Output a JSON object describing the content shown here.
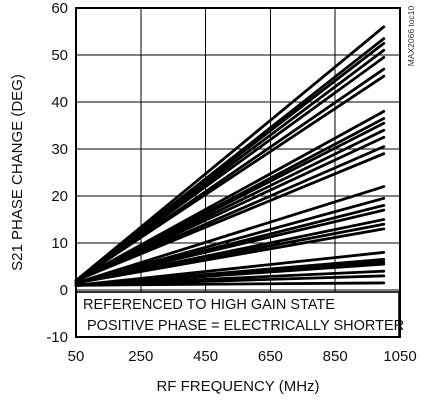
{
  "chart_data": {
    "type": "line",
    "xlabel": "RF FREQUENCY (MHz)",
    "ylabel": "S21 PHASE CHANGE (DEG)",
    "side_tag": "MAX2066 toc10",
    "xlim": [
      50,
      1050
    ],
    "ylim": [
      -10,
      60
    ],
    "x_ticks": [
      "50",
      "250",
      "450",
      "650",
      "850",
      "1050"
    ],
    "y_ticks": [
      "-10",
      "0",
      "10",
      "20",
      "30",
      "40",
      "50",
      "60"
    ],
    "grid": true,
    "annotations": [
      "REFERENCED TO HIGH GAIN STATE",
      "POSITIVE PHASE = ELECTRICALLY SHORTER"
    ],
    "x": [
      50,
      1000
    ],
    "series": [
      {
        "values": [
          2,
          56
        ]
      },
      {
        "values": [
          2,
          53.5
        ]
      },
      {
        "values": [
          2,
          52.5
        ]
      },
      {
        "values": [
          2,
          51
        ]
      },
      {
        "values": [
          2,
          49.5
        ]
      },
      {
        "values": [
          2,
          47
        ]
      },
      {
        "values": [
          2,
          45.5
        ]
      },
      {
        "values": [
          2,
          38
        ]
      },
      {
        "values": [
          2,
          36.5
        ]
      },
      {
        "values": [
          2,
          35.5
        ]
      },
      {
        "values": [
          2,
          34
        ]
      },
      {
        "values": [
          2,
          32.5
        ]
      },
      {
        "values": [
          2,
          30.5
        ]
      },
      {
        "values": [
          2,
          29
        ]
      },
      {
        "values": [
          1.5,
          22
        ]
      },
      {
        "values": [
          1.5,
          19.5
        ]
      },
      {
        "values": [
          1.5,
          18
        ]
      },
      {
        "values": [
          1.5,
          17
        ]
      },
      {
        "values": [
          1.5,
          15
        ]
      },
      {
        "values": [
          1.5,
          14
        ]
      },
      {
        "values": [
          1.5,
          13
        ]
      },
      {
        "values": [
          1,
          8
        ]
      },
      {
        "values": [
          1,
          6.5
        ]
      },
      {
        "values": [
          1,
          6
        ]
      },
      {
        "values": [
          1,
          5.5
        ]
      },
      {
        "values": [
          1,
          4
        ]
      },
      {
        "values": [
          1,
          3
        ]
      },
      {
        "values": [
          1,
          1.5
        ]
      }
    ]
  }
}
